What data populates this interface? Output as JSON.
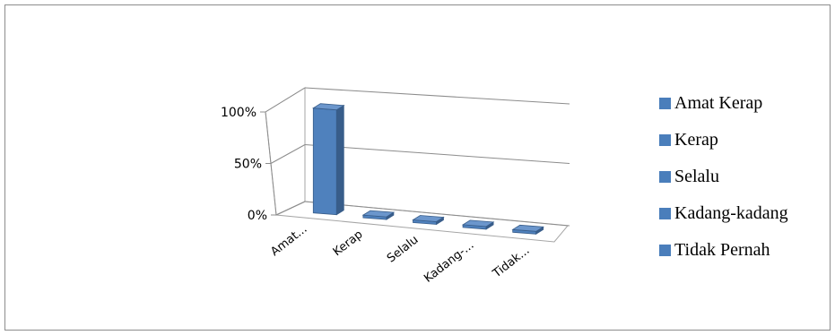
{
  "chart_data": {
    "type": "bar",
    "categories": [
      "Amat Kerap",
      "Kerap",
      "Selalu",
      "Kadang-kadang",
      "Tidak Pernah"
    ],
    "category_tick_labels": [
      "Amat...",
      "Kerap",
      "Selalu",
      "Kadang-...",
      "Tidak..."
    ],
    "series": [
      {
        "values": [
          100,
          0,
          0,
          0,
          0
        ]
      }
    ],
    "y_ticks": [
      "0%",
      "50%",
      "100%"
    ],
    "ylim": [
      0,
      100
    ],
    "legend": {
      "placement": "right",
      "entries": [
        "Amat Kerap",
        "Kerap",
        "Selalu",
        "Kadang-kadang",
        "Tidak Pernah"
      ]
    },
    "grid": true,
    "colors": {
      "bar_front": "#4f81bd",
      "bar_side": "#385d8a",
      "bar_top": "#6b96cc",
      "legend_swatch": "#4a7ebb"
    }
  }
}
